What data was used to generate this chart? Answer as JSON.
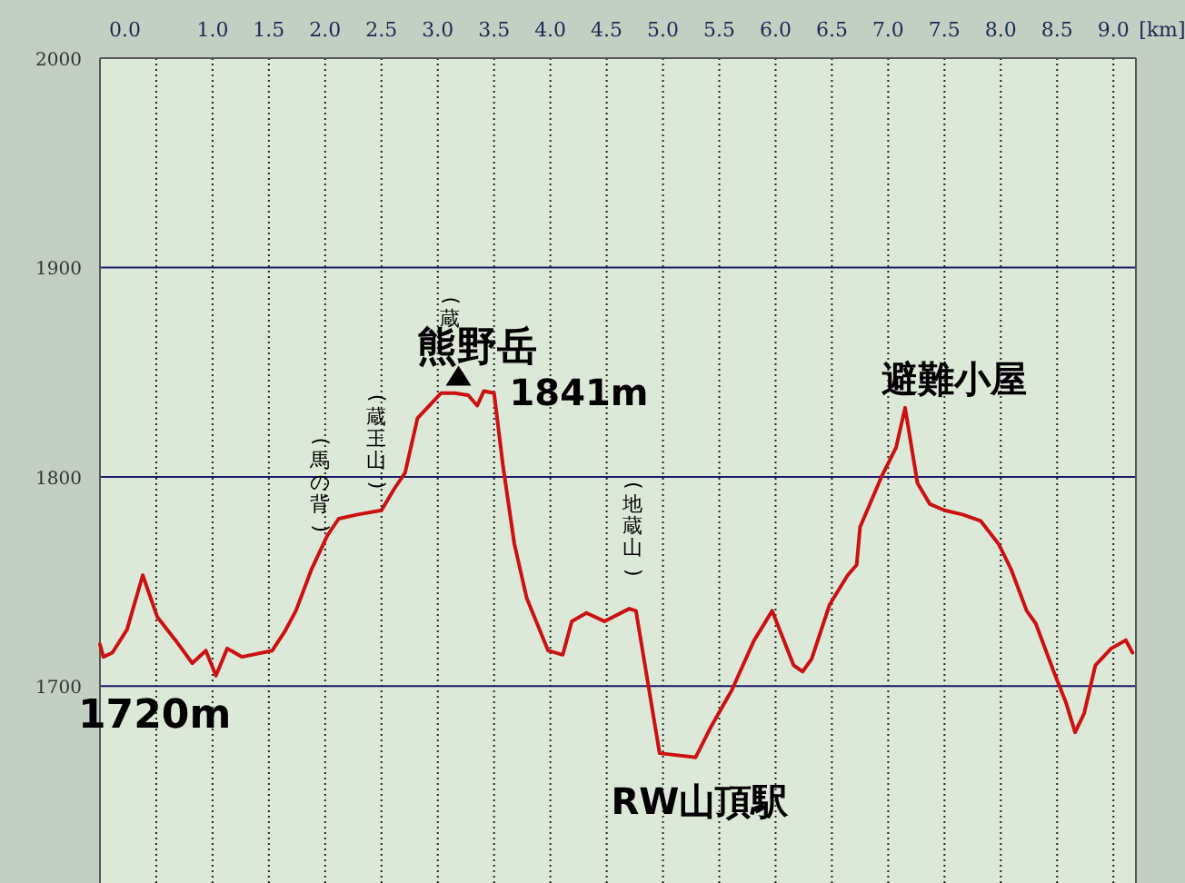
{
  "chart_data": {
    "type": "line",
    "xlabel": "[km]",
    "xlim": [
      0,
      9.2
    ],
    "ylim": [
      1606,
      2000
    ],
    "xticks": [
      {
        "value": 0,
        "label": "0.0"
      },
      {
        "value": 0.5,
        "label": null
      },
      {
        "value": 1,
        "label": "1.0"
      },
      {
        "value": 1.5,
        "label": "1.5"
      },
      {
        "value": 2,
        "label": "2.0"
      },
      {
        "value": 2.5,
        "label": "2.5"
      },
      {
        "value": 3,
        "label": "3.0"
      },
      {
        "value": 3.5,
        "label": "3.5"
      },
      {
        "value": 4,
        "label": "4.0"
      },
      {
        "value": 4.5,
        "label": "4.5"
      },
      {
        "value": 5,
        "label": "5.0"
      },
      {
        "value": 5.5,
        "label": "5.5"
      },
      {
        "value": 6,
        "label": "6.0"
      },
      {
        "value": 6.5,
        "label": "6.5"
      },
      {
        "value": 7,
        "label": "7.0"
      },
      {
        "value": 7.5,
        "label": "7.5"
      },
      {
        "value": 8,
        "label": "8.0"
      },
      {
        "value": 8.5,
        "label": "8.5"
      },
      {
        "value": 9,
        "label": "9.0"
      }
    ],
    "yticks": [
      1700,
      1800,
      1900,
      2000
    ],
    "grid": true,
    "marker": "none",
    "line_style": "solid",
    "series": [
      {
        "color": "#cc1111",
        "x": [
          0,
          0.03,
          0.11,
          0.24,
          0.38,
          0.51,
          0.67,
          0.82,
          0.94,
          1.03,
          1.13,
          1.26,
          1.53,
          1.64,
          1.74,
          1.88,
          2.02,
          2.12,
          2.29,
          2.5,
          2.61,
          2.71,
          2.82,
          3.03,
          3.15,
          3.27,
          3.35,
          3.41,
          3.5,
          3.58,
          3.68,
          3.79,
          3.98,
          4.11,
          4.19,
          4.32,
          4.48,
          4.7,
          4.76,
          4.97,
          5.29,
          5.43,
          5.61,
          5.81,
          5.97,
          6.16,
          6.24,
          6.32,
          6.48,
          6.64,
          6.72,
          6.75,
          6.94,
          7.07,
          7.15,
          7.26,
          7.37,
          7.5,
          7.66,
          7.82,
          7.98,
          8.09,
          8.23,
          8.31,
          8.47,
          8.58,
          8.66,
          8.74,
          8.84,
          8.98,
          9.11,
          9.17
        ],
        "values": [
          1720,
          1714,
          1716,
          1727,
          1753,
          1733,
          1722,
          1711,
          1717,
          1705,
          1718,
          1714,
          1717,
          1726,
          1736,
          1756,
          1772,
          1780,
          1782,
          1784,
          1794,
          1802,
          1828,
          1840,
          1840,
          1839,
          1834,
          1841,
          1840,
          1805,
          1768,
          1742,
          1717,
          1715,
          1731,
          1735,
          1731,
          1737,
          1736,
          1668,
          1666,
          1681,
          1698,
          1722,
          1736,
          1710,
          1707,
          1713,
          1739,
          1753,
          1758,
          1776,
          1800,
          1814,
          1833,
          1797,
          1787,
          1784,
          1782,
          1779,
          1768,
          1756,
          1736,
          1730,
          1707,
          1692,
          1678,
          1687,
          1710,
          1718,
          1722,
          1716
        ]
      }
    ],
    "annotations": [
      {
        "text": "1720m",
        "x": 0,
        "y": 1720
      },
      {
        "text": "熊野岳",
        "x": 3.41,
        "y": 1841
      },
      {
        "text": "1841m",
        "x": 3.41,
        "y": 1841
      },
      {
        "text": "避難小屋",
        "x": 7.15,
        "y": 1833
      },
      {
        "text": "RW山頂駅",
        "x": 5.1,
        "y": 1666
      },
      {
        "text": "(馬の背)",
        "x": 1.95,
        "y": 1765
      },
      {
        "text": "(蔵王山)",
        "x": 2.45,
        "y": 1784
      },
      "(蔵",
      {
        "text": "(地蔵山)",
        "x": 4.73,
        "y": 1737
      }
    ]
  }
}
